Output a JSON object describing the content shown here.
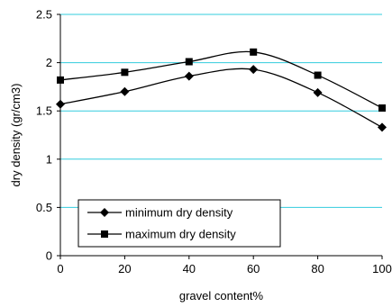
{
  "chart_data": {
    "type": "line",
    "title": "",
    "xlabel": "gravel content%",
    "ylabel": "dry density (gr/cm3)",
    "x": [
      0,
      20,
      40,
      60,
      80,
      100
    ],
    "x_ticks": [
      "0",
      "20",
      "40",
      "60",
      "80",
      "100"
    ],
    "y_ticks": [
      "0",
      "0.5",
      "1",
      "1.5",
      "2",
      "2.5"
    ],
    "xlim": [
      0,
      100
    ],
    "ylim": [
      0,
      2.5
    ],
    "grid": "horizontal",
    "gridline_color": "#33ccdd",
    "legend_position": "bottom-left",
    "series": [
      {
        "name": "minimum dry density",
        "marker": "diamond",
        "color": "#000000",
        "values": [
          1.57,
          1.7,
          1.86,
          1.93,
          1.69,
          1.33
        ]
      },
      {
        "name": "maximum dry density",
        "marker": "square",
        "color": "#000000",
        "values": [
          1.82,
          1.9,
          2.01,
          2.11,
          1.87,
          1.53
        ]
      }
    ]
  }
}
